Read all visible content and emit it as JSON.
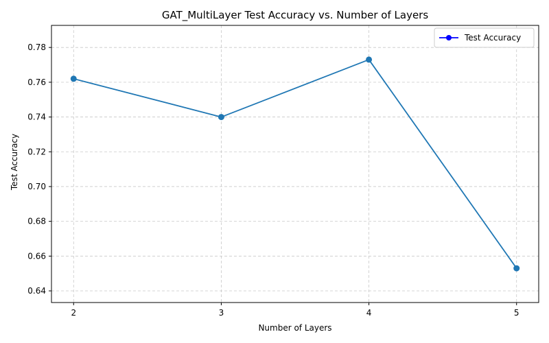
{
  "chart_data": {
    "type": "line",
    "title": "GAT_MultiLayer Test Accuracy vs. Number of Layers",
    "xlabel": "Number of Layers",
    "ylabel": "Test Accuracy",
    "x": [
      2,
      3,
      4,
      5
    ],
    "x_ticks": [
      "2",
      "3",
      "4",
      "5"
    ],
    "xlim": [
      1.85,
      5.15
    ],
    "ylim": [
      0.6333,
      0.7927
    ],
    "y_ticks": [
      0.64,
      0.66,
      0.68,
      0.7,
      0.72,
      0.74,
      0.76,
      0.78
    ],
    "y_tick_labels": [
      "0.64",
      "0.66",
      "0.68",
      "0.70",
      "0.72",
      "0.74",
      "0.76",
      "0.78"
    ],
    "grid": true,
    "legend_position": "top-right",
    "series": [
      {
        "name": "Test Accuracy",
        "values": [
          0.762,
          0.74,
          0.773,
          0.653
        ],
        "color": "#1f77b4",
        "legend_color": "#0000ff",
        "marker": "circle"
      }
    ]
  }
}
